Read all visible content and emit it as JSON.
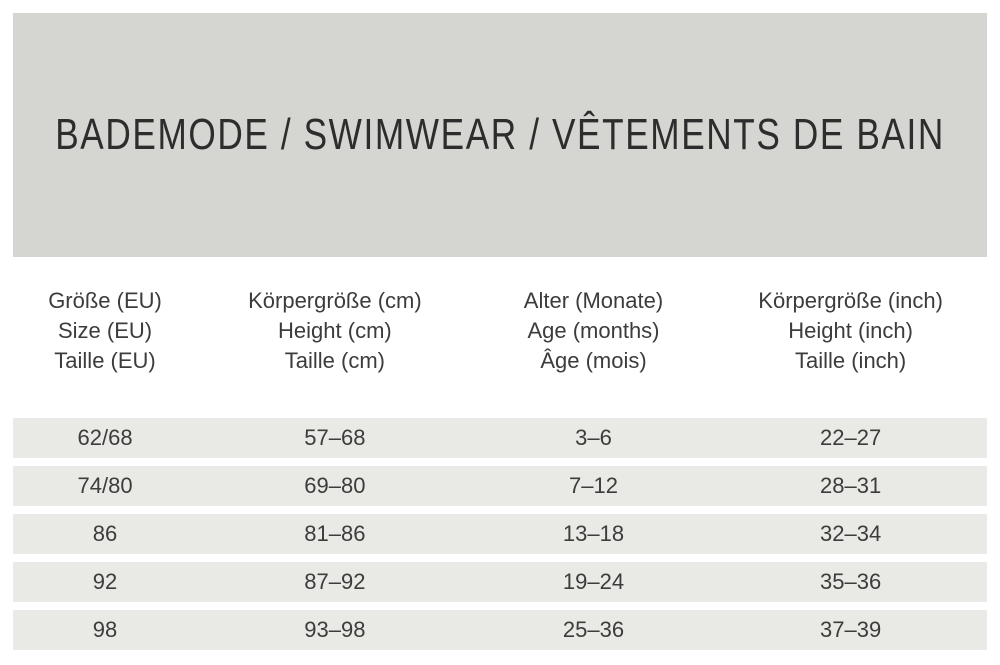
{
  "banner": {
    "title": "BADEMODE / SWIMWEAR / VÊTEMENTS DE BAIN"
  },
  "size_chart": {
    "columns": [
      {
        "lines": [
          "Größe (EU)",
          "Size (EU)",
          "Taille (EU)"
        ]
      },
      {
        "lines": [
          "Körpergröße (cm)",
          "Height (cm)",
          "Taille (cm)"
        ]
      },
      {
        "lines": [
          "Alter (Monate)",
          "Age (months)",
          "Âge (mois)"
        ]
      },
      {
        "lines": [
          "Körpergröße (inch)",
          "Height (inch)",
          "Taille (inch)"
        ]
      }
    ],
    "rows": [
      [
        "62/68",
        "57–68",
        "3–6",
        "22–27"
      ],
      [
        "74/80",
        "69–80",
        "7–12",
        "28–31"
      ],
      [
        "86",
        "81–86",
        "13–18",
        "32–34"
      ],
      [
        "92",
        "87–92",
        "19–24",
        "35–36"
      ],
      [
        "98",
        "93–98",
        "25–36",
        "37–39"
      ]
    ]
  },
  "colors": {
    "banner_bg": "#d5d5d1",
    "row_bg": "#e9e9e5",
    "text": "#3c3c3c",
    "page_bg": "#ffffff"
  }
}
